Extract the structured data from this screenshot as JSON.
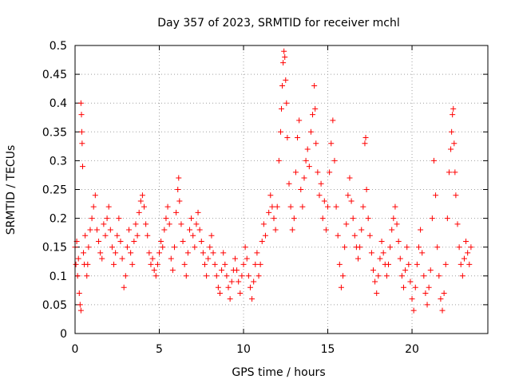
{
  "chart_data": {
    "type": "scatter",
    "title": "Day 357 of 2023, SRMTID for receiver mchl",
    "xlabel": "GPS time / hours",
    "ylabel": "SRMTID / TECUs",
    "xlim": [
      0,
      24.5
    ],
    "ylim": [
      0,
      0.5
    ],
    "x_ticks": [
      0,
      5,
      10,
      15,
      20
    ],
    "x_tick_labels": [
      "0",
      "5",
      "10",
      "15",
      "20"
    ],
    "y_ticks": [
      0,
      0.05,
      0.1,
      0.15,
      0.2,
      0.25,
      0.3,
      0.35,
      0.4,
      0.45,
      0.5
    ],
    "y_tick_labels": [
      "0",
      "0.05",
      "0.1",
      "0.15",
      "0.2",
      "0.25",
      "0.3",
      "0.35",
      "0.4",
      "0.45",
      "0.5"
    ],
    "grid": true,
    "marker": "plus",
    "marker_color": "#ff0000",
    "series": [
      {
        "name": "SRMTID",
        "points": [
          [
            0.0,
            0.15
          ],
          [
            0.05,
            0.12
          ],
          [
            0.1,
            0.16
          ],
          [
            0.15,
            0.1
          ],
          [
            0.2,
            0.13
          ],
          [
            0.25,
            0.07
          ],
          [
            0.3,
            0.05
          ],
          [
            0.35,
            0.04
          ],
          [
            0.35,
            0.4
          ],
          [
            0.38,
            0.38
          ],
          [
            0.4,
            0.35
          ],
          [
            0.42,
            0.33
          ],
          [
            0.45,
            0.29
          ],
          [
            0.5,
            0.14
          ],
          [
            0.55,
            0.12
          ],
          [
            0.6,
            0.17
          ],
          [
            0.7,
            0.1
          ],
          [
            0.75,
            0.12
          ],
          [
            0.8,
            0.15
          ],
          [
            0.9,
            0.18
          ],
          [
            1.0,
            0.2
          ],
          [
            1.1,
            0.22
          ],
          [
            1.2,
            0.24
          ],
          [
            1.3,
            0.18
          ],
          [
            1.4,
            0.16
          ],
          [
            1.5,
            0.14
          ],
          [
            1.6,
            0.13
          ],
          [
            1.7,
            0.19
          ],
          [
            1.8,
            0.17
          ],
          [
            1.9,
            0.2
          ],
          [
            2.0,
            0.22
          ],
          [
            2.1,
            0.18
          ],
          [
            2.2,
            0.15
          ],
          [
            2.3,
            0.12
          ],
          [
            2.4,
            0.14
          ],
          [
            2.5,
            0.17
          ],
          [
            2.6,
            0.2
          ],
          [
            2.7,
            0.16
          ],
          [
            2.8,
            0.13
          ],
          [
            2.9,
            0.08
          ],
          [
            3.0,
            0.1
          ],
          [
            3.1,
            0.15
          ],
          [
            3.2,
            0.18
          ],
          [
            3.3,
            0.14
          ],
          [
            3.4,
            0.12
          ],
          [
            3.5,
            0.16
          ],
          [
            3.6,
            0.19
          ],
          [
            3.7,
            0.17
          ],
          [
            3.8,
            0.21
          ],
          [
            3.9,
            0.23
          ],
          [
            4.0,
            0.24
          ],
          [
            4.1,
            0.22
          ],
          [
            4.2,
            0.19
          ],
          [
            4.3,
            0.17
          ],
          [
            4.4,
            0.14
          ],
          [
            4.5,
            0.12
          ],
          [
            4.6,
            0.13
          ],
          [
            4.7,
            0.11
          ],
          [
            4.8,
            0.1
          ],
          [
            4.9,
            0.12
          ],
          [
            5.0,
            0.14
          ],
          [
            5.1,
            0.16
          ],
          [
            5.2,
            0.15
          ],
          [
            5.3,
            0.18
          ],
          [
            5.4,
            0.2
          ],
          [
            5.5,
            0.22
          ],
          [
            5.6,
            0.19
          ],
          [
            5.7,
            0.13
          ],
          [
            5.8,
            0.11
          ],
          [
            5.9,
            0.15
          ],
          [
            6.0,
            0.21
          ],
          [
            6.1,
            0.25
          ],
          [
            6.15,
            0.27
          ],
          [
            6.2,
            0.23
          ],
          [
            6.3,
            0.19
          ],
          [
            6.4,
            0.16
          ],
          [
            6.5,
            0.12
          ],
          [
            6.6,
            0.1
          ],
          [
            6.7,
            0.14
          ],
          [
            6.8,
            0.18
          ],
          [
            6.9,
            0.2
          ],
          [
            7.0,
            0.17
          ],
          [
            7.1,
            0.15
          ],
          [
            7.2,
            0.19
          ],
          [
            7.3,
            0.21
          ],
          [
            7.4,
            0.18
          ],
          [
            7.5,
            0.16
          ],
          [
            7.6,
            0.14
          ],
          [
            7.7,
            0.12
          ],
          [
            7.8,
            0.1
          ],
          [
            7.9,
            0.13
          ],
          [
            8.0,
            0.15
          ],
          [
            8.1,
            0.17
          ],
          [
            8.2,
            0.14
          ],
          [
            8.3,
            0.12
          ],
          [
            8.4,
            0.1
          ],
          [
            8.5,
            0.08
          ],
          [
            8.6,
            0.07
          ],
          [
            8.7,
            0.11
          ],
          [
            8.8,
            0.14
          ],
          [
            8.9,
            0.12
          ],
          [
            9.0,
            0.1
          ],
          [
            9.1,
            0.08
          ],
          [
            9.2,
            0.06
          ],
          [
            9.3,
            0.09
          ],
          [
            9.4,
            0.11
          ],
          [
            9.5,
            0.13
          ],
          [
            9.6,
            0.11
          ],
          [
            9.7,
            0.09
          ],
          [
            9.8,
            0.07
          ],
          [
            9.9,
            0.1
          ],
          [
            10.0,
            0.12
          ],
          [
            10.1,
            0.15
          ],
          [
            10.2,
            0.13
          ],
          [
            10.3,
            0.1
          ],
          [
            10.4,
            0.08
          ],
          [
            10.5,
            0.06
          ],
          [
            10.6,
            0.09
          ],
          [
            10.7,
            0.12
          ],
          [
            10.8,
            0.14
          ],
          [
            10.9,
            0.1
          ],
          [
            11.0,
            0.12
          ],
          [
            11.1,
            0.16
          ],
          [
            11.2,
            0.19
          ],
          [
            11.3,
            0.17
          ],
          [
            11.5,
            0.21
          ],
          [
            11.6,
            0.24
          ],
          [
            11.7,
            0.22
          ],
          [
            11.8,
            0.2
          ],
          [
            11.9,
            0.18
          ],
          [
            12.0,
            0.22
          ],
          [
            12.1,
            0.3
          ],
          [
            12.2,
            0.35
          ],
          [
            12.25,
            0.39
          ],
          [
            12.3,
            0.43
          ],
          [
            12.35,
            0.47
          ],
          [
            12.4,
            0.49
          ],
          [
            12.45,
            0.48
          ],
          [
            12.5,
            0.44
          ],
          [
            12.55,
            0.4
          ],
          [
            12.6,
            0.34
          ],
          [
            12.7,
            0.26
          ],
          [
            12.8,
            0.22
          ],
          [
            12.9,
            0.18
          ],
          [
            13.0,
            0.2
          ],
          [
            13.1,
            0.28
          ],
          [
            13.2,
            0.34
          ],
          [
            13.3,
            0.37
          ],
          [
            13.4,
            0.25
          ],
          [
            13.5,
            0.22
          ],
          [
            13.6,
            0.27
          ],
          [
            13.7,
            0.3
          ],
          [
            13.8,
            0.32
          ],
          [
            13.9,
            0.29
          ],
          [
            14.0,
            0.35
          ],
          [
            14.1,
            0.38
          ],
          [
            14.2,
            0.43
          ],
          [
            14.25,
            0.39
          ],
          [
            14.3,
            0.33
          ],
          [
            14.4,
            0.28
          ],
          [
            14.5,
            0.24
          ],
          [
            14.6,
            0.26
          ],
          [
            14.7,
            0.2
          ],
          [
            14.8,
            0.23
          ],
          [
            14.9,
            0.18
          ],
          [
            15.0,
            0.22
          ],
          [
            15.1,
            0.28
          ],
          [
            15.2,
            0.33
          ],
          [
            15.3,
            0.37
          ],
          [
            15.4,
            0.3
          ],
          [
            15.5,
            0.22
          ],
          [
            15.6,
            0.17
          ],
          [
            15.7,
            0.12
          ],
          [
            15.8,
            0.08
          ],
          [
            15.9,
            0.1
          ],
          [
            16.0,
            0.15
          ],
          [
            16.1,
            0.19
          ],
          [
            16.2,
            0.24
          ],
          [
            16.3,
            0.27
          ],
          [
            16.4,
            0.23
          ],
          [
            16.5,
            0.2
          ],
          [
            16.6,
            0.17
          ],
          [
            16.7,
            0.15
          ],
          [
            16.8,
            0.13
          ],
          [
            16.9,
            0.15
          ],
          [
            17.0,
            0.18
          ],
          [
            17.1,
            0.22
          ],
          [
            17.2,
            0.33
          ],
          [
            17.25,
            0.34
          ],
          [
            17.3,
            0.25
          ],
          [
            17.4,
            0.2
          ],
          [
            17.5,
            0.17
          ],
          [
            17.6,
            0.14
          ],
          [
            17.7,
            0.11
          ],
          [
            17.8,
            0.09
          ],
          [
            17.9,
            0.07
          ],
          [
            18.0,
            0.1
          ],
          [
            18.1,
            0.13
          ],
          [
            18.2,
            0.16
          ],
          [
            18.3,
            0.14
          ],
          [
            18.4,
            0.12
          ],
          [
            18.5,
            0.1
          ],
          [
            18.6,
            0.12
          ],
          [
            18.7,
            0.15
          ],
          [
            18.8,
            0.18
          ],
          [
            18.9,
            0.2
          ],
          [
            19.0,
            0.22
          ],
          [
            19.1,
            0.19
          ],
          [
            19.2,
            0.16
          ],
          [
            19.3,
            0.13
          ],
          [
            19.4,
            0.1
          ],
          [
            19.5,
            0.08
          ],
          [
            19.6,
            0.11
          ],
          [
            19.7,
            0.15
          ],
          [
            19.8,
            0.12
          ],
          [
            19.9,
            0.09
          ],
          [
            20.0,
            0.06
          ],
          [
            20.1,
            0.04
          ],
          [
            20.2,
            0.08
          ],
          [
            20.3,
            0.12
          ],
          [
            20.4,
            0.15
          ],
          [
            20.5,
            0.18
          ],
          [
            20.6,
            0.14
          ],
          [
            20.7,
            0.1
          ],
          [
            20.8,
            0.07
          ],
          [
            20.9,
            0.05
          ],
          [
            21.0,
            0.08
          ],
          [
            21.1,
            0.11
          ],
          [
            21.2,
            0.2
          ],
          [
            21.3,
            0.3
          ],
          [
            21.4,
            0.24
          ],
          [
            21.5,
            0.15
          ],
          [
            21.6,
            0.1
          ],
          [
            21.7,
            0.06
          ],
          [
            21.8,
            0.04
          ],
          [
            21.9,
            0.07
          ],
          [
            22.0,
            0.12
          ],
          [
            22.1,
            0.2
          ],
          [
            22.2,
            0.28
          ],
          [
            22.3,
            0.32
          ],
          [
            22.35,
            0.35
          ],
          [
            22.4,
            0.38
          ],
          [
            22.45,
            0.39
          ],
          [
            22.5,
            0.33
          ],
          [
            22.55,
            0.28
          ],
          [
            22.6,
            0.24
          ],
          [
            22.7,
            0.19
          ],
          [
            22.8,
            0.15
          ],
          [
            22.9,
            0.12
          ],
          [
            23.0,
            0.1
          ],
          [
            23.1,
            0.13
          ],
          [
            23.2,
            0.16
          ],
          [
            23.3,
            0.14
          ],
          [
            23.4,
            0.12
          ],
          [
            23.5,
            0.15
          ]
        ]
      }
    ]
  }
}
